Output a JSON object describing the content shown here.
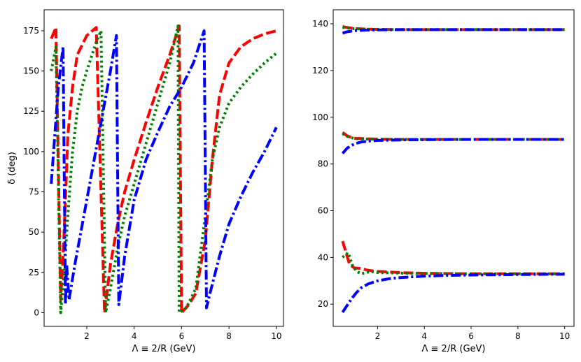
{
  "chart_data": [
    {
      "type": "line",
      "xlabel": "Λ ≡ 2/R (GeV)",
      "ylabel": "δ (deg)",
      "xlim": [
        0.2,
        10.3
      ],
      "ylim": [
        -8.5,
        188
      ],
      "xticks": [
        2,
        4,
        6,
        8,
        10
      ],
      "xtick_labels": [
        "2",
        "4",
        "6",
        "8",
        "10"
      ],
      "yticks": [
        0,
        25,
        50,
        75,
        100,
        125,
        150,
        175
      ],
      "ytick_labels": [
        "0",
        "25",
        "50",
        "75",
        "100",
        "125",
        "150",
        "175"
      ],
      "grid": false,
      "series": [
        {
          "color": "#ff0000",
          "style": "dashed",
          "x": [
            0.5,
            0.7,
            0.9,
            1.0,
            1.1,
            1.2,
            1.4,
            1.6,
            2.0,
            2.4,
            2.6,
            2.75,
            3.0,
            3.3,
            3.6,
            4.0,
            4.5,
            5.0,
            5.5,
            5.9,
            6.0,
            6.3,
            6.6,
            7.0,
            7.3,
            7.6,
            8.0,
            8.5,
            9.0,
            9.5,
            10.0
          ],
          "y": [
            170,
            177,
            8,
            35,
            70,
            110,
            140,
            160,
            172,
            177,
            75,
            0,
            30,
            55,
            75,
            95,
            118,
            140,
            160,
            178,
            0,
            5,
            12,
            45,
            95,
            135,
            155,
            165,
            170,
            173,
            175
          ]
        },
        {
          "color": "#008000",
          "style": "dotted",
          "x": [
            0.5,
            0.7,
            0.9,
            1.05,
            1.2,
            1.4,
            1.6,
            1.8,
            2.0,
            2.4,
            2.6,
            2.8,
            3.0,
            3.3,
            3.6,
            4.0,
            4.5,
            5.0,
            5.5,
            5.85,
            5.9,
            6.2,
            6.6,
            7.0,
            7.3,
            7.6,
            8.0,
            8.5,
            9.0,
            9.5,
            10.0
          ],
          "y": [
            150,
            165,
            0,
            25,
            60,
            100,
            125,
            140,
            150,
            168,
            175,
            0,
            15,
            40,
            60,
            80,
            105,
            130,
            155,
            178,
            0,
            3,
            15,
            60,
            95,
            115,
            130,
            140,
            148,
            155,
            161
          ]
        },
        {
          "color": "#0000ff",
          "style": "dashdot",
          "x": [
            0.5,
            0.8,
            1.0,
            1.1,
            1.15,
            1.25,
            1.5,
            2.0,
            2.5,
            3.0,
            3.25,
            3.35,
            3.6,
            4.0,
            4.5,
            5.0,
            5.5,
            6.0,
            6.5,
            6.95,
            7.05,
            7.2,
            7.6,
            8.0,
            8.5,
            9.0,
            9.5,
            10.0
          ],
          "y": [
            80,
            140,
            165,
            5,
            30,
            8,
            30,
            70,
            110,
            150,
            172,
            5,
            35,
            70,
            95,
            112,
            128,
            140,
            155,
            175,
            3,
            12,
            35,
            55,
            72,
            87,
            100,
            115
          ]
        }
      ]
    },
    {
      "type": "line",
      "xlabel": "Λ ≡ 2/R (GeV)",
      "ylabel": "",
      "xlim": [
        0.1,
        10.4
      ],
      "ylim": [
        10.5,
        146
      ],
      "xticks": [
        2,
        4,
        6,
        8,
        10
      ],
      "xtick_labels": [
        "2",
        "4",
        "6",
        "8",
        "10"
      ],
      "yticks": [
        20,
        40,
        60,
        80,
        100,
        120,
        140
      ],
      "ytick_labels": [
        "20",
        "40",
        "60",
        "80",
        "100",
        "120",
        "140"
      ],
      "grid": false,
      "series": [
        {
          "color": "#ff0000",
          "style": "dashed",
          "x": [
            0.5,
            0.7,
            1.0,
            1.5,
            2.0,
            3.0,
            4.0,
            6.0,
            8.0,
            10.0
          ],
          "y": [
            138.8,
            138.4,
            138.0,
            137.7,
            137.6,
            137.5,
            137.5,
            137.5,
            137.5,
            137.5
          ]
        },
        {
          "color": "#008000",
          "style": "dotted",
          "x": [
            0.5,
            0.7,
            1.0,
            1.5,
            2.0,
            3.0,
            4.0,
            6.0,
            8.0,
            10.0
          ],
          "y": [
            138.5,
            138.2,
            137.9,
            137.7,
            137.6,
            137.5,
            137.5,
            137.5,
            137.5,
            137.5
          ]
        },
        {
          "color": "#0000ff",
          "style": "dashdot",
          "x": [
            0.5,
            0.7,
            1.0,
            1.5,
            2.0,
            3.0,
            4.0,
            6.0,
            8.0,
            10.0
          ],
          "y": [
            136.0,
            136.6,
            137.1,
            137.3,
            137.4,
            137.5,
            137.5,
            137.5,
            137.5,
            137.5
          ]
        },
        {
          "color": "#ff0000",
          "style": "dashed",
          "x": [
            0.5,
            0.7,
            1.0,
            1.5,
            2.0,
            3.0,
            4.0,
            6.0,
            8.0,
            10.0
          ],
          "y": [
            93.5,
            92.0,
            91.0,
            90.8,
            90.6,
            90.5,
            90.5,
            90.5,
            90.5,
            90.5
          ]
        },
        {
          "color": "#008000",
          "style": "dotted",
          "x": [
            0.5,
            0.7,
            1.0,
            1.5,
            2.0,
            3.0,
            4.0,
            6.0,
            8.0,
            10.0
          ],
          "y": [
            93.0,
            91.8,
            90.9,
            90.7,
            90.6,
            90.5,
            90.5,
            90.5,
            90.5,
            90.5
          ]
        },
        {
          "color": "#0000ff",
          "style": "dashdot",
          "x": [
            0.5,
            0.7,
            1.0,
            1.3,
            1.6,
            2.0,
            3.0,
            4.0,
            6.0,
            8.0,
            10.0
          ],
          "y": [
            84.5,
            86.8,
            88.6,
            89.4,
            89.8,
            90.1,
            90.3,
            90.4,
            90.5,
            90.5,
            90.5
          ]
        },
        {
          "color": "#ff0000",
          "style": "dashed",
          "x": [
            0.5,
            0.65,
            0.8,
            1.0,
            1.3,
            1.6,
            2.0,
            3.0,
            4.0,
            6.0,
            8.0,
            10.0
          ],
          "y": [
            47,
            42,
            37,
            35.5,
            35.2,
            34.5,
            34.0,
            33.5,
            33.2,
            33.0,
            33.0,
            33.0
          ]
        },
        {
          "color": "#008000",
          "style": "dotted",
          "x": [
            0.5,
            0.6,
            0.75,
            0.9,
            1.1,
            1.3,
            1.5,
            1.7,
            2.0,
            3.0,
            4.0,
            6.0,
            8.0,
            10.0
          ],
          "y": [
            40,
            41,
            42,
            37,
            34,
            33,
            33.5,
            34,
            33.5,
            33.3,
            33.1,
            33.0,
            33.0,
            33.0
          ]
        },
        {
          "color": "#0000ff",
          "style": "dashdot",
          "x": [
            0.5,
            0.7,
            0.9,
            1.1,
            1.3,
            1.6,
            2.0,
            2.5,
            3.0,
            4.0,
            5.0,
            6.0,
            8.0,
            10.0
          ],
          "y": [
            16.5,
            19.5,
            22.5,
            25.0,
            27.0,
            28.7,
            30.0,
            30.9,
            31.4,
            32.0,
            32.3,
            32.5,
            32.7,
            32.8
          ]
        }
      ]
    }
  ]
}
